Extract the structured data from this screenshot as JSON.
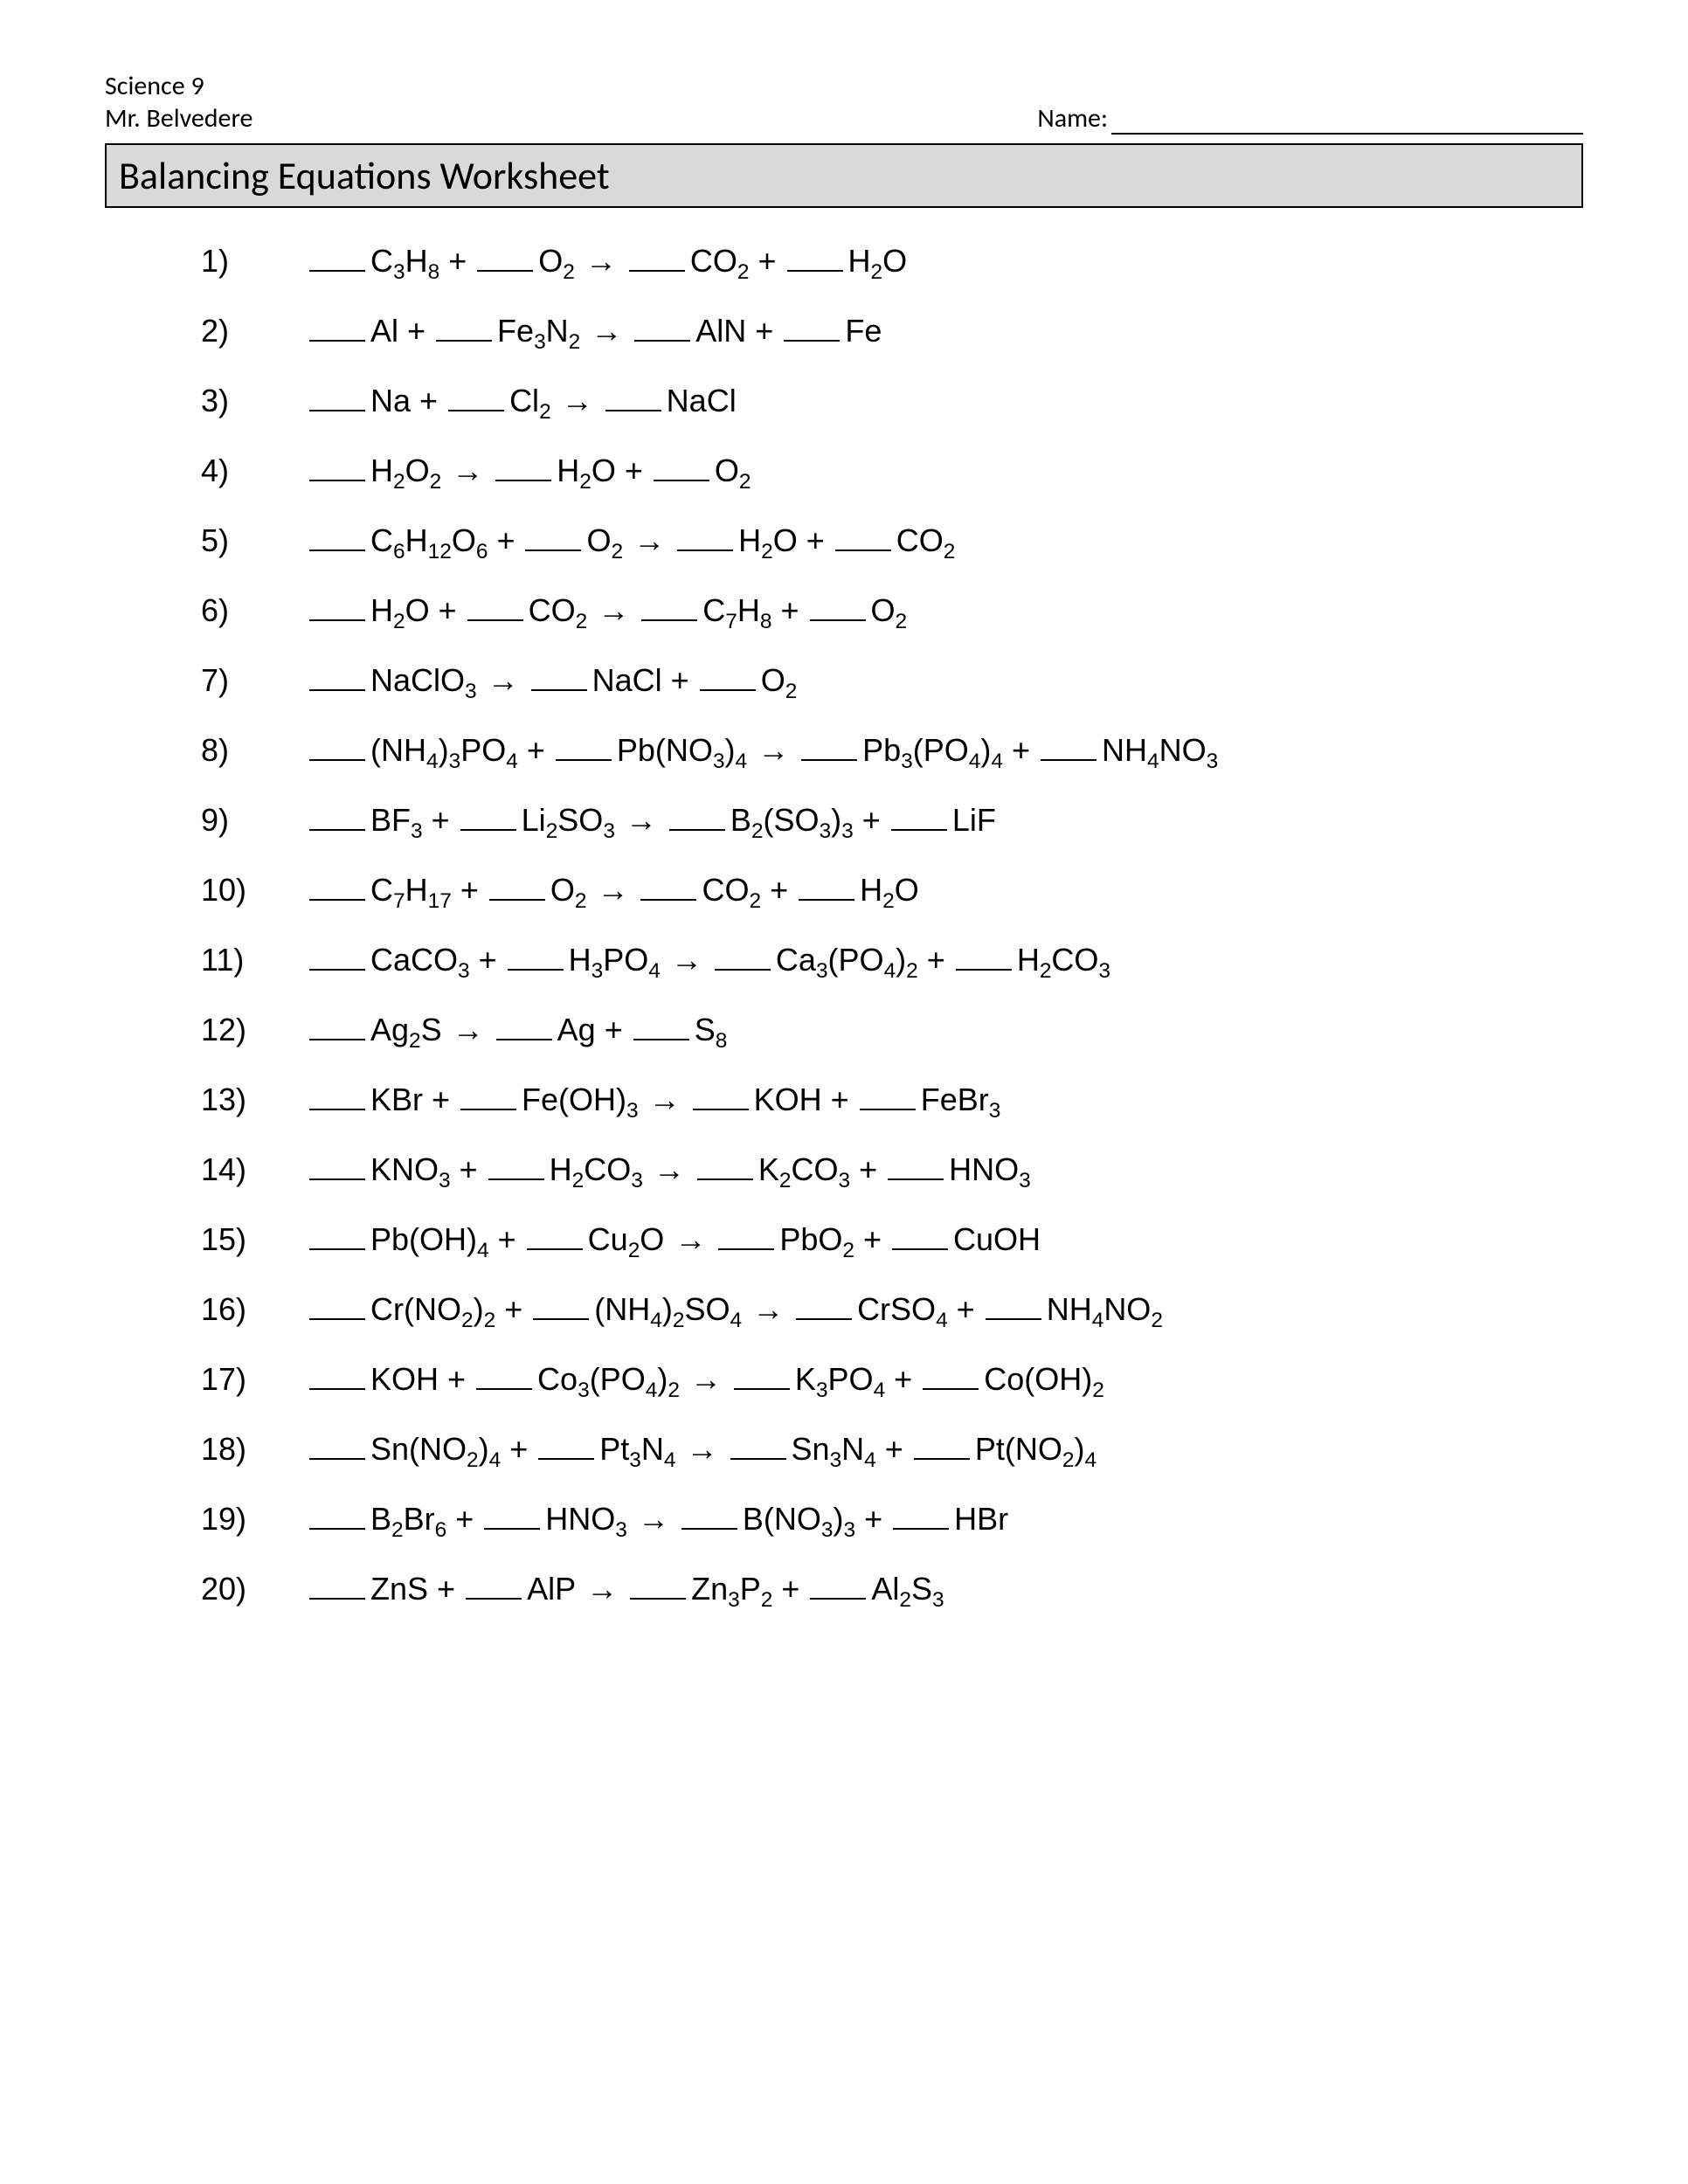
{
  "header": {
    "course": "Science 9",
    "teacher": "Mr. Belvedere",
    "name_label": "Name:"
  },
  "title": "Balancing Equations Worksheet",
  "arrow_glyph": "→",
  "plus_glyph": "+",
  "equations": [
    {
      "n": "1)",
      "terms": [
        {
          "f": "C3H8"
        },
        {
          "op": "+"
        },
        {
          "f": "O2"
        },
        {
          "op": "→"
        },
        {
          "f": "CO2"
        },
        {
          "op": "+"
        },
        {
          "f": "H2O"
        }
      ]
    },
    {
      "n": "2)",
      "terms": [
        {
          "f": "Al"
        },
        {
          "op": "+"
        },
        {
          "f": "Fe3N2"
        },
        {
          "op": "→"
        },
        {
          "f": "AlN"
        },
        {
          "op": "+"
        },
        {
          "f": "Fe"
        }
      ]
    },
    {
      "n": "3)",
      "terms": [
        {
          "f": "Na"
        },
        {
          "op": "+"
        },
        {
          "f": "Cl2"
        },
        {
          "op": "→"
        },
        {
          "f": "NaCl"
        }
      ]
    },
    {
      "n": "4)",
      "terms": [
        {
          "f": "H2O2"
        },
        {
          "op": "→"
        },
        {
          "f": "H2O"
        },
        {
          "op": "+"
        },
        {
          "f": "O2"
        }
      ]
    },
    {
      "n": "5)",
      "terms": [
        {
          "f": "C6H12O6"
        },
        {
          "op": "+"
        },
        {
          "f": "O2"
        },
        {
          "op": "→"
        },
        {
          "f": "H2O"
        },
        {
          "op": "+"
        },
        {
          "f": "CO2"
        }
      ]
    },
    {
      "n": "6)",
      "terms": [
        {
          "f": "H2O"
        },
        {
          "op": "+"
        },
        {
          "f": "CO2"
        },
        {
          "op": "→"
        },
        {
          "f": "C7H8"
        },
        {
          "op": "+"
        },
        {
          "f": "O2"
        }
      ]
    },
    {
      "n": "7)",
      "terms": [
        {
          "f": "NaClO3"
        },
        {
          "op": "→"
        },
        {
          "f": "NaCl"
        },
        {
          "op": "+"
        },
        {
          "f": "O2"
        }
      ]
    },
    {
      "n": "8)",
      "terms": [
        {
          "f": "(NH4)3PO4"
        },
        {
          "op": "+"
        },
        {
          "f": "Pb(NO3)4"
        },
        {
          "op": "→"
        },
        {
          "f": "Pb3(PO4)4"
        },
        {
          "op": "+"
        },
        {
          "f": "NH4NO3"
        }
      ]
    },
    {
      "n": "9)",
      "terms": [
        {
          "f": "BF3"
        },
        {
          "op": "+"
        },
        {
          "f": "Li2SO3"
        },
        {
          "op": "→"
        },
        {
          "f": "B2(SO3)3"
        },
        {
          "op": "+"
        },
        {
          "f": "LiF"
        }
      ]
    },
    {
      "n": "10)",
      "terms": [
        {
          "f": "C7H17"
        },
        {
          "op": "+"
        },
        {
          "f": "O2"
        },
        {
          "op": "→"
        },
        {
          "f": "CO2"
        },
        {
          "op": "+"
        },
        {
          "f": "H2O"
        }
      ]
    },
    {
      "n": "11)",
      "terms": [
        {
          "f": "CaCO3"
        },
        {
          "op": "+"
        },
        {
          "f": "H3PO4"
        },
        {
          "op": "→"
        },
        {
          "f": "Ca3(PO4)2"
        },
        {
          "op": "+"
        },
        {
          "f": "H2CO3"
        }
      ]
    },
    {
      "n": "12)",
      "terms": [
        {
          "f": "Ag2S"
        },
        {
          "op": "→"
        },
        {
          "f": "Ag"
        },
        {
          "op": "+"
        },
        {
          "f": "S8"
        }
      ]
    },
    {
      "n": "13)",
      "terms": [
        {
          "f": "KBr"
        },
        {
          "op": "+"
        },
        {
          "f": "Fe(OH)3"
        },
        {
          "op": "→"
        },
        {
          "f": "KOH"
        },
        {
          "op": "+"
        },
        {
          "f": "FeBr3"
        }
      ]
    },
    {
      "n": "14)",
      "terms": [
        {
          "f": "KNO3"
        },
        {
          "op": "+"
        },
        {
          "f": "H2CO3"
        },
        {
          "op": "→"
        },
        {
          "f": "K2CO3"
        },
        {
          "op": "+"
        },
        {
          "f": "HNO3"
        }
      ]
    },
    {
      "n": "15)",
      "terms": [
        {
          "f": "Pb(OH)4"
        },
        {
          "op": "+"
        },
        {
          "f": "Cu2O"
        },
        {
          "op": "→"
        },
        {
          "f": "PbO2"
        },
        {
          "op": "+"
        },
        {
          "f": "CuOH"
        }
      ]
    },
    {
      "n": "16)",
      "terms": [
        {
          "f": "Cr(NO2)2"
        },
        {
          "op": "+"
        },
        {
          "f": "(NH4)2SO4"
        },
        {
          "op": "→"
        },
        {
          "f": "CrSO4"
        },
        {
          "op": "+"
        },
        {
          "f": "NH4NO2"
        }
      ]
    },
    {
      "n": "17)",
      "terms": [
        {
          "f": "KOH"
        },
        {
          "op": "+"
        },
        {
          "f": "Co3(PO4)2"
        },
        {
          "op": "→"
        },
        {
          "f": "K3PO4"
        },
        {
          "op": "+"
        },
        {
          "f": "Co(OH)2"
        }
      ]
    },
    {
      "n": "18)",
      "terms": [
        {
          "f": "Sn(NO2)4"
        },
        {
          "op": "+"
        },
        {
          "f": "Pt3N4"
        },
        {
          "op": "→"
        },
        {
          "f": "Sn3N4"
        },
        {
          "op": "+"
        },
        {
          "f": "Pt(NO2)4"
        }
      ]
    },
    {
      "n": "19)",
      "terms": [
        {
          "f": "B2Br6"
        },
        {
          "op": "+"
        },
        {
          "f": "HNO3"
        },
        {
          "op": "→"
        },
        {
          "f": "B(NO3)3"
        },
        {
          "op": "+"
        },
        {
          "f": "HBr"
        }
      ]
    },
    {
      "n": "20)",
      "terms": [
        {
          "f": "ZnS"
        },
        {
          "op": "+"
        },
        {
          "f": "AlP"
        },
        {
          "op": "→"
        },
        {
          "f": "Zn3P2"
        },
        {
          "op": "+"
        },
        {
          "f": "Al2S3"
        }
      ]
    }
  ]
}
